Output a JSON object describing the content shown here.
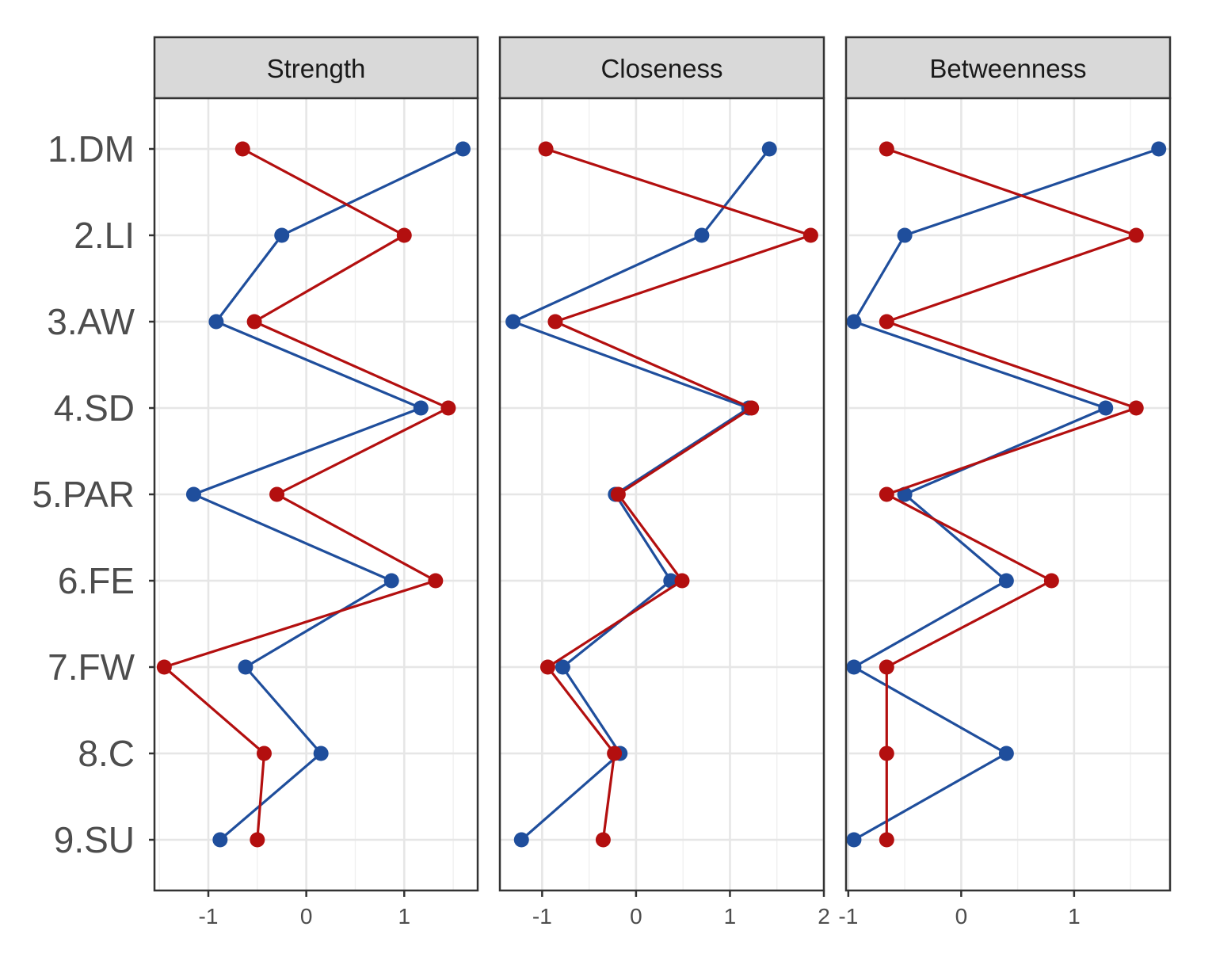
{
  "chart_data": {
    "type": "line",
    "orientation": "horizontal-categories-on-y",
    "categories": [
      "1.DM",
      "2.LI",
      "3.AW",
      "4.SD",
      "5.PAR",
      "6.FE",
      "7.FW",
      "8.C",
      "9.SU"
    ],
    "series_colors": {
      "blue": "#1f4e9c",
      "red": "#b30f0f"
    },
    "facets": [
      {
        "title": "Strength",
        "xlim": [
          -1.55,
          1.75
        ],
        "xticks": [
          -1,
          0,
          1
        ],
        "xtick_labels": [
          "-1",
          "0",
          "1"
        ],
        "series": [
          {
            "name": "blue",
            "values": [
              1.6,
              -0.25,
              -0.92,
              1.17,
              -1.15,
              0.87,
              -0.62,
              0.15,
              -0.88
            ]
          },
          {
            "name": "red",
            "values": [
              -0.65,
              1.0,
              -0.53,
              1.45,
              -0.3,
              1.32,
              -1.45,
              -0.43,
              -0.5
            ]
          }
        ]
      },
      {
        "title": "Closeness",
        "xlim": [
          -1.45,
          2.0
        ],
        "xticks": [
          -1,
          0,
          1,
          2
        ],
        "xtick_labels": [
          "-1",
          "0",
          "1",
          "2"
        ],
        "series": [
          {
            "name": "blue",
            "values": [
              1.42,
              0.7,
              -1.31,
              1.2,
              -0.22,
              0.37,
              -0.78,
              -0.17,
              -1.22
            ]
          },
          {
            "name": "red",
            "values": [
              -0.96,
              1.86,
              -0.86,
              1.23,
              -0.19,
              0.49,
              -0.94,
              -0.23,
              -0.35
            ]
          }
        ]
      },
      {
        "title": "Betweenness",
        "xlim": [
          -1.02,
          1.85
        ],
        "xticks": [
          -1,
          0,
          1
        ],
        "xtick_labels": [
          "-1",
          "0",
          "1"
        ],
        "series": [
          {
            "name": "blue",
            "values": [
              1.75,
              -0.5,
              -0.95,
              1.28,
              -0.5,
              0.4,
              -0.95,
              0.4,
              -0.95
            ]
          },
          {
            "name": "red",
            "values": [
              -0.66,
              1.55,
              -0.66,
              1.55,
              -0.66,
              0.8,
              -0.66,
              -0.66,
              -0.66
            ]
          }
        ]
      }
    ]
  }
}
